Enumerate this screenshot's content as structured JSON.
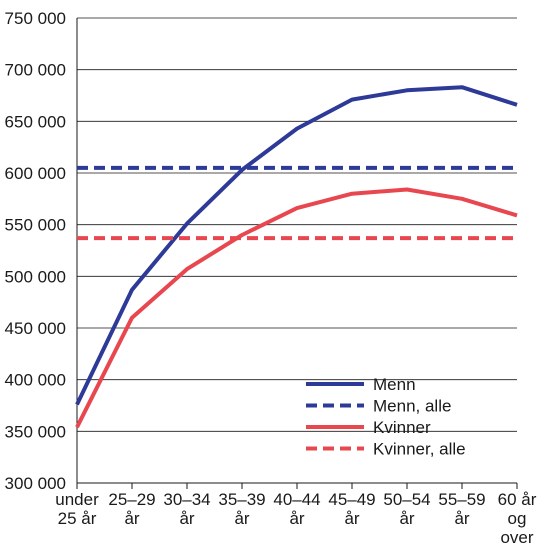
{
  "chart_data": {
    "type": "line",
    "title": "",
    "xlabel": "",
    "ylabel": "",
    "categories": [
      [
        "under",
        "25 år"
      ],
      [
        "25–29",
        "år"
      ],
      [
        "30–34",
        "år"
      ],
      [
        "35–39",
        "år"
      ],
      [
        "40–44",
        "år"
      ],
      [
        "45–49",
        "år"
      ],
      [
        "50–54",
        "år"
      ],
      [
        "55–59",
        "år"
      ],
      [
        "60 år",
        "og",
        "over"
      ]
    ],
    "ylim": [
      300000,
      750000
    ],
    "yticks": [
      300000,
      350000,
      400000,
      450000,
      500000,
      550000,
      600000,
      650000,
      700000,
      750000
    ],
    "ytick_labels": [
      "300 000",
      "350 000",
      "400 000",
      "450 000",
      "500 000",
      "550 000",
      "600 000",
      "650 000",
      "700 000",
      "750 000"
    ],
    "grid": "horizontal",
    "legend_position": "bottom-right",
    "series": [
      {
        "name": "Menn",
        "style": "solid",
        "color": "#2e3a97",
        "values": [
          376000,
          487000,
          551000,
          603000,
          643000,
          671000,
          680000,
          683000,
          666000
        ]
      },
      {
        "name": "Menn, alle",
        "style": "dashed",
        "color": "#2e3a97",
        "values": [
          605000,
          605000,
          605000,
          605000,
          605000,
          605000,
          605000,
          605000,
          605000
        ]
      },
      {
        "name": "Kvinner",
        "style": "solid",
        "color": "#e8474f",
        "values": [
          354000,
          460000,
          507000,
          540000,
          566000,
          580000,
          584000,
          575000,
          559000
        ]
      },
      {
        "name": "Kvinner, alle",
        "style": "dashed",
        "color": "#e8474f",
        "values": [
          537000,
          537000,
          537000,
          537000,
          537000,
          537000,
          537000,
          537000,
          537000
        ]
      }
    ]
  }
}
